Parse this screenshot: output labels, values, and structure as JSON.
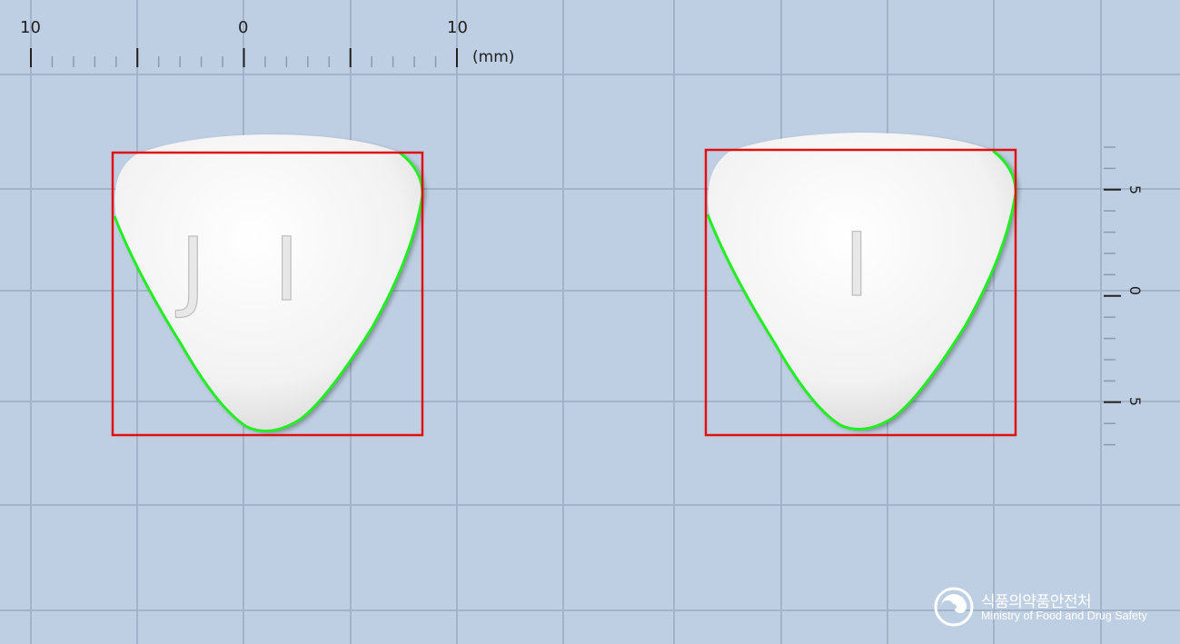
{
  "scene": {
    "description_visible": false,
    "ruler_top": {
      "labels": [
        "10",
        "0",
        "10"
      ],
      "unit": "(mm)"
    },
    "ruler_right": {
      "labels": [
        "5",
        "0",
        "5"
      ]
    },
    "pills": [
      {
        "imprint": "J I"
      },
      {
        "imprint": "I"
      }
    ],
    "colors": {
      "background": "#bfcfe3",
      "grid_line": "#a3b4ca",
      "pill": "#f4f4f4",
      "bounding_box": "#e01010",
      "contour": "#22ee22"
    },
    "logo": {
      "korean": "식품의약품안전처",
      "english": "Ministry of Food and Drug Safety"
    }
  }
}
